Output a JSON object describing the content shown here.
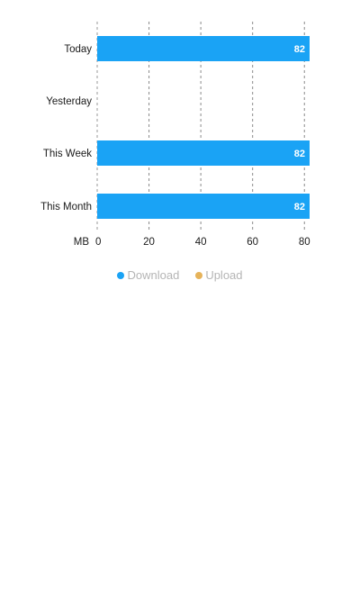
{
  "chart_data": {
    "type": "bar",
    "orientation": "horizontal",
    "categories": [
      "Today",
      "Yesterday",
      "This Week",
      "This Month"
    ],
    "series": [
      {
        "name": "Download",
        "values": [
          82,
          0,
          82,
          82
        ],
        "color": "#1aa3f5"
      },
      {
        "name": "Upload",
        "values": [
          0,
          0,
          0,
          0
        ],
        "color": "#e6b35a"
      }
    ],
    "data_labels": [
      "82",
      "",
      "82",
      "82"
    ],
    "xlabel": "MB",
    "xticks": [
      "0",
      "20",
      "40",
      "60",
      "80"
    ],
    "xlim": [
      0,
      82
    ],
    "grid": "vertical-dashed",
    "legend": "bottom"
  },
  "legend": {
    "download_label": "Download",
    "upload_label": "Upload",
    "download_color": "#1aa3f5",
    "upload_color": "#e6b35a"
  }
}
